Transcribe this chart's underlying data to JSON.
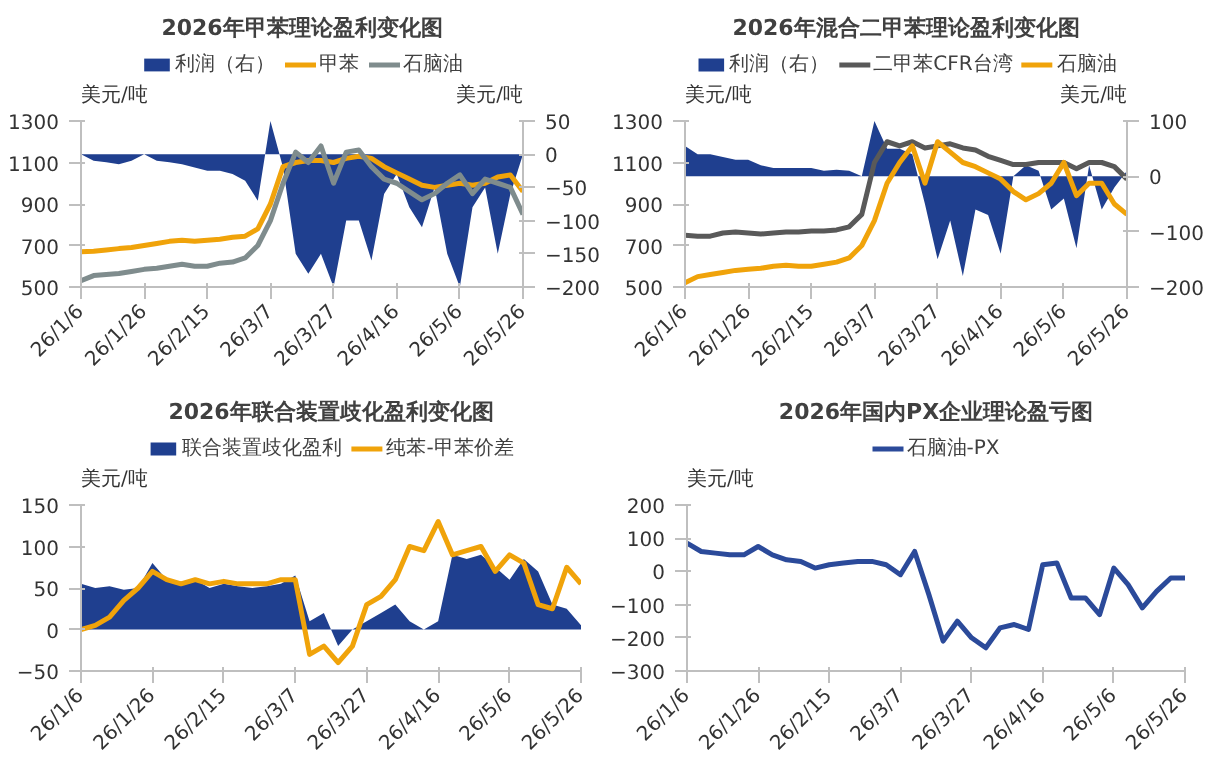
{
  "chart_data": [
    {
      "type": "line",
      "title": "2026年甲苯理论盈利变化图",
      "ylabel": "美元/吨",
      "y2label": "美元/吨",
      "x": [
        "2026-01-06",
        "2026-01-10",
        "2026-01-14",
        "2026-01-18",
        "2026-01-22",
        "2026-01-26",
        "2026-01-30",
        "2026-02-03",
        "2026-02-07",
        "2026-02-11",
        "2026-02-15",
        "2026-02-19",
        "2026-02-23",
        "2026-02-27",
        "2026-03-03",
        "2026-03-07",
        "2026-03-11",
        "2026-03-15",
        "2026-03-19",
        "2026-03-23",
        "2026-03-27",
        "2026-03-31",
        "2026-04-04",
        "2026-04-08",
        "2026-04-12",
        "2026-04-16",
        "2026-04-20",
        "2026-04-24",
        "2026-04-28",
        "2026-05-02",
        "2026-05-06",
        "2026-05-10",
        "2026-05-14",
        "2026-05-18",
        "2026-05-22",
        "2026-05-26"
      ],
      "xlim": [
        "2026-01-06",
        "2026-05-26"
      ],
      "xticks": [
        {
          "value": "2026-01-06",
          "label": "26/1/6"
        },
        {
          "value": "2026-01-26",
          "label": "26/1/26"
        },
        {
          "value": "2026-02-15",
          "label": "26/2/15"
        },
        {
          "value": "2026-03-07",
          "label": "26/3/7"
        },
        {
          "value": "2026-03-27",
          "label": "26/3/27"
        },
        {
          "value": "2026-04-16",
          "label": "26/4/16"
        },
        {
          "value": "2026-05-06",
          "label": "26/5/6"
        },
        {
          "value": "2026-05-26",
          "label": "26/5/26"
        }
      ],
      "ylim": [
        500,
        1300
      ],
      "yticks": [
        500,
        700,
        900,
        1100,
        1300
      ],
      "y2lim": [
        -200,
        50
      ],
      "y2ticks": [
        -200,
        -150,
        -100,
        -50,
        0,
        50
      ],
      "legend": "top",
      "grid": false,
      "series": [
        {
          "name": "利润（右）",
          "type": "area",
          "axis": "y2",
          "color": "#1f3f8f",
          "values": [
            0,
            -10,
            -12,
            -15,
            -10,
            0,
            -10,
            -12,
            -15,
            -20,
            -25,
            -25,
            -30,
            -40,
            -70,
            50,
            -20,
            -150,
            -180,
            -150,
            -200,
            -100,
            -100,
            -160,
            -60,
            -30,
            -80,
            -110,
            -50,
            -150,
            -200,
            -80,
            -50,
            -150,
            -60,
            0
          ]
        },
        {
          "name": "甲苯",
          "color": "#f0a30a",
          "values": [
            670,
            672,
            678,
            685,
            690,
            700,
            710,
            720,
            725,
            720,
            725,
            730,
            740,
            745,
            780,
            900,
            1080,
            1100,
            1110,
            1110,
            1100,
            1120,
            1130,
            1120,
            1080,
            1050,
            1020,
            990,
            980,
            990,
            1000,
            990,
            1000,
            1030,
            1040,
            960
          ]
        },
        {
          "name": "石脑油",
          "color": "#7f8c8d",
          "values": [
            530,
            555,
            560,
            565,
            575,
            585,
            590,
            600,
            610,
            600,
            600,
            615,
            620,
            640,
            700,
            820,
            1000,
            1150,
            1100,
            1180,
            1000,
            1150,
            1160,
            1080,
            1020,
            1000,
            960,
            920,
            950,
            1000,
            1040,
            950,
            1020,
            1000,
            980,
            850
          ]
        }
      ]
    },
    {
      "type": "line",
      "title": "2026年混合二甲苯理论盈利变化图",
      "ylabel": "美元/吨",
      "y2label": "美元/吨",
      "x": [
        "2026-01-06",
        "2026-01-10",
        "2026-01-14",
        "2026-01-18",
        "2026-01-22",
        "2026-01-26",
        "2026-01-30",
        "2026-02-03",
        "2026-02-07",
        "2026-02-11",
        "2026-02-15",
        "2026-02-19",
        "2026-02-23",
        "2026-02-27",
        "2026-03-03",
        "2026-03-07",
        "2026-03-11",
        "2026-03-15",
        "2026-03-19",
        "2026-03-23",
        "2026-03-27",
        "2026-03-31",
        "2026-04-04",
        "2026-04-08",
        "2026-04-12",
        "2026-04-16",
        "2026-04-20",
        "2026-04-24",
        "2026-04-28",
        "2026-05-02",
        "2026-05-06",
        "2026-05-10",
        "2026-05-14",
        "2026-05-18",
        "2026-05-22",
        "2026-05-26"
      ],
      "xlim": [
        "2026-01-06",
        "2026-05-26"
      ],
      "xticks": [
        {
          "value": "2026-01-06",
          "label": "26/1/6"
        },
        {
          "value": "2026-01-26",
          "label": "26/1/26"
        },
        {
          "value": "2026-02-15",
          "label": "26/2/15"
        },
        {
          "value": "2026-03-07",
          "label": "26/3/7"
        },
        {
          "value": "2026-03-27",
          "label": "26/3/27"
        },
        {
          "value": "2026-04-16",
          "label": "26/4/16"
        },
        {
          "value": "2026-05-06",
          "label": "26/5/6"
        },
        {
          "value": "2026-05-26",
          "label": "26/5/26"
        }
      ],
      "ylim": [
        500,
        1300
      ],
      "yticks": [
        500,
        700,
        900,
        1100,
        1300
      ],
      "y2lim": [
        -200,
        100
      ],
      "y2ticks": [
        -200,
        -100,
        0,
        100
      ],
      "legend": "top",
      "grid": false,
      "series": [
        {
          "name": "利润（右）",
          "type": "area",
          "axis": "y2",
          "color": "#1f3f8f",
          "values": [
            55,
            40,
            40,
            35,
            30,
            30,
            20,
            15,
            15,
            15,
            15,
            10,
            12,
            10,
            0,
            100,
            50,
            50,
            40,
            -50,
            -150,
            -80,
            -180,
            -60,
            -70,
            -140,
            0,
            20,
            10,
            -60,
            -40,
            -130,
            20,
            -60,
            -20,
            10
          ]
        },
        {
          "name": "二甲苯CFR台湾",
          "color": "#595959",
          "values": [
            750,
            745,
            745,
            760,
            765,
            760,
            755,
            760,
            765,
            765,
            770,
            770,
            775,
            790,
            850,
            1100,
            1200,
            1180,
            1200,
            1170,
            1180,
            1190,
            1170,
            1160,
            1130,
            1110,
            1090,
            1090,
            1100,
            1100,
            1100,
            1070,
            1100,
            1100,
            1080,
            1020
          ]
        },
        {
          "name": "石脑油",
          "color": "#f0a30a",
          "values": [
            520,
            550,
            560,
            570,
            580,
            585,
            590,
            600,
            605,
            600,
            600,
            610,
            620,
            640,
            700,
            820,
            1000,
            1100,
            1180,
            1000,
            1200,
            1150,
            1100,
            1080,
            1050,
            1020,
            960,
            920,
            950,
            1000,
            1100,
            940,
            1000,
            1000,
            900,
            850
          ]
        }
      ]
    },
    {
      "type": "line",
      "title": "2026年联合装置歧化盈利变化图",
      "ylabel": "美元/吨",
      "x": [
        "2026-01-06",
        "2026-01-10",
        "2026-01-14",
        "2026-01-18",
        "2026-01-22",
        "2026-01-26",
        "2026-01-30",
        "2026-02-03",
        "2026-02-07",
        "2026-02-11",
        "2026-02-15",
        "2026-02-19",
        "2026-02-23",
        "2026-02-27",
        "2026-03-03",
        "2026-03-07",
        "2026-03-11",
        "2026-03-15",
        "2026-03-19",
        "2026-03-23",
        "2026-03-27",
        "2026-03-31",
        "2026-04-04",
        "2026-04-08",
        "2026-04-12",
        "2026-04-16",
        "2026-04-20",
        "2026-04-24",
        "2026-04-28",
        "2026-05-02",
        "2026-05-06",
        "2026-05-10",
        "2026-05-14",
        "2026-05-18",
        "2026-05-22",
        "2026-05-26"
      ],
      "xlim": [
        "2026-01-06",
        "2026-05-26"
      ],
      "xticks": [
        {
          "value": "2026-01-06",
          "label": "26/1/6"
        },
        {
          "value": "2026-01-26",
          "label": "26/1/26"
        },
        {
          "value": "2026-02-15",
          "label": "26/2/15"
        },
        {
          "value": "2026-03-07",
          "label": "26/3/7"
        },
        {
          "value": "2026-03-27",
          "label": "26/3/27"
        },
        {
          "value": "2026-04-16",
          "label": "26/4/16"
        },
        {
          "value": "2026-05-06",
          "label": "26/5/6"
        },
        {
          "value": "2026-05-26",
          "label": "26/5/26"
        }
      ],
      "ylim": [
        -50,
        150
      ],
      "yticks": [
        -50,
        0,
        50,
        100,
        150
      ],
      "legend": "top",
      "grid": false,
      "series": [
        {
          "name": "联合装置歧化盈利",
          "type": "area",
          "color": "#1f3f8f",
          "values": [
            55,
            50,
            52,
            48,
            50,
            80,
            60,
            55,
            60,
            50,
            55,
            52,
            50,
            52,
            55,
            65,
            10,
            20,
            -20,
            0,
            10,
            20,
            30,
            10,
            0,
            10,
            90,
            85,
            90,
            75,
            60,
            85,
            70,
            30,
            25,
            5
          ]
        },
        {
          "name": "纯苯-甲苯价差",
          "color": "#f0a30a",
          "values": [
            0,
            5,
            15,
            35,
            50,
            70,
            60,
            55,
            60,
            55,
            58,
            55,
            55,
            55,
            60,
            60,
            -30,
            -20,
            -40,
            -20,
            30,
            40,
            60,
            100,
            95,
            130,
            90,
            95,
            100,
            70,
            90,
            80,
            30,
            25,
            75,
            55
          ]
        }
      ]
    },
    {
      "type": "line",
      "title": "2026年国内PX企业理论盈亏图",
      "ylabel": "美元/吨",
      "x": [
        "2026-01-06",
        "2026-01-10",
        "2026-01-14",
        "2026-01-18",
        "2026-01-22",
        "2026-01-26",
        "2026-01-30",
        "2026-02-03",
        "2026-02-07",
        "2026-02-11",
        "2026-02-15",
        "2026-02-19",
        "2026-02-23",
        "2026-02-27",
        "2026-03-03",
        "2026-03-07",
        "2026-03-11",
        "2026-03-15",
        "2026-03-19",
        "2026-03-23",
        "2026-03-27",
        "2026-03-31",
        "2026-04-04",
        "2026-04-08",
        "2026-04-12",
        "2026-04-16",
        "2026-04-20",
        "2026-04-24",
        "2026-04-28",
        "2026-05-02",
        "2026-05-06",
        "2026-05-10",
        "2026-05-14",
        "2026-05-18",
        "2026-05-22",
        "2026-05-26"
      ],
      "xlim": [
        "2026-01-06",
        "2026-05-26"
      ],
      "xticks": [
        {
          "value": "2026-01-06",
          "label": "26/1/6"
        },
        {
          "value": "2026-01-26",
          "label": "26/1/26"
        },
        {
          "value": "2026-02-15",
          "label": "26/2/15"
        },
        {
          "value": "2026-03-07",
          "label": "26/3/7"
        },
        {
          "value": "2026-03-27",
          "label": "26/3/27"
        },
        {
          "value": "2026-04-16",
          "label": "26/4/16"
        },
        {
          "value": "2026-05-06",
          "label": "26/5/6"
        },
        {
          "value": "2026-05-26",
          "label": "26/5/26"
        }
      ],
      "ylim": [
        -300,
        200
      ],
      "yticks": [
        -300,
        -200,
        -100,
        0,
        100,
        200
      ],
      "legend": "top",
      "grid": false,
      "series": [
        {
          "name": "石脑油-PX",
          "color": "#2b4a9a",
          "values": [
            85,
            60,
            55,
            50,
            50,
            75,
            50,
            35,
            30,
            10,
            20,
            25,
            30,
            30,
            20,
            -10,
            60,
            -70,
            -210,
            -150,
            -200,
            -230,
            -170,
            -160,
            -175,
            20,
            25,
            -80,
            -80,
            -130,
            10,
            -40,
            -110,
            -60,
            -20,
            -20
          ]
        }
      ]
    }
  ]
}
